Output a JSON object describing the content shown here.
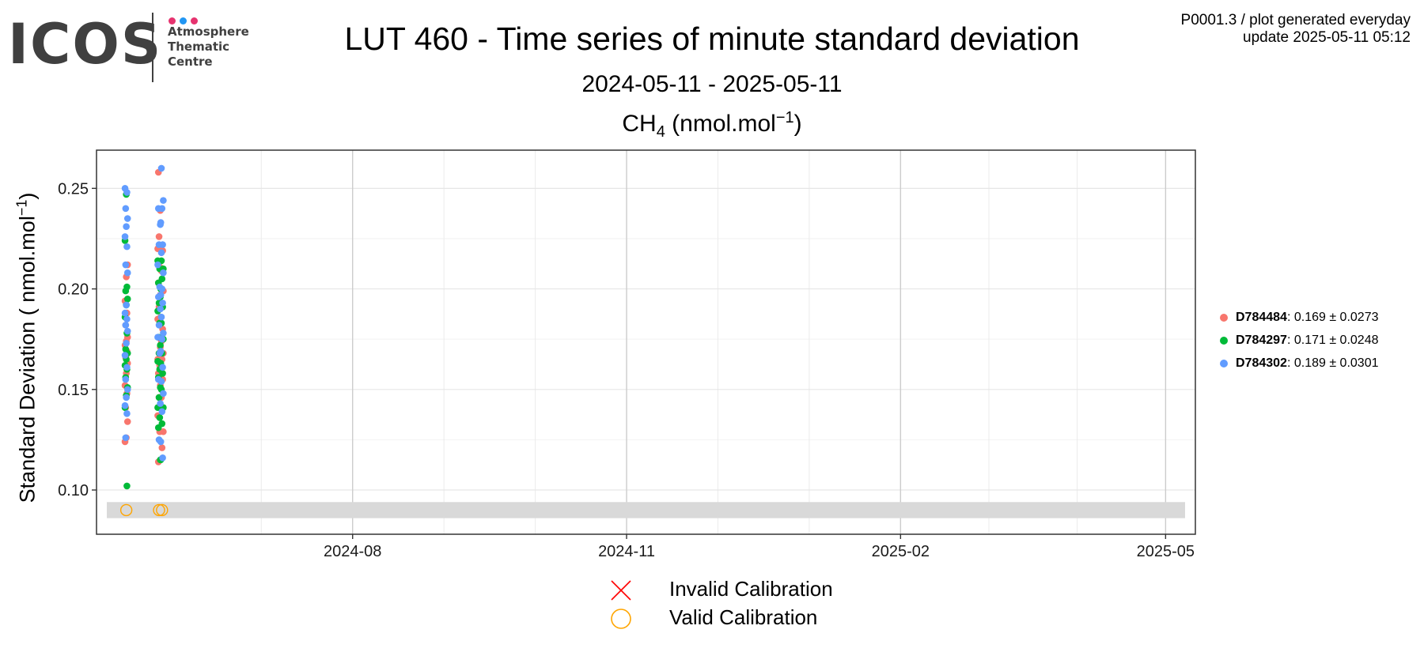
{
  "logo": {
    "text": "ICOS",
    "subtitle_lines": [
      "Atmosphere",
      "Thematic",
      "Centre"
    ],
    "dot_colors": [
      "#e6336f",
      "#2196f3",
      "#e6336f"
    ]
  },
  "header": {
    "title": "LUT 460 - Time series of minute standard deviation",
    "date_range": "2024-05-11 - 2025-05-11",
    "species_base": "CH",
    "species_sub": "4",
    "species_unit_pre": " (nmol.mol",
    "species_unit_sup": "−1",
    "species_unit_post": ")",
    "meta_line1": "P0001.3 / plot generated everyday",
    "meta_line2": "update  2025-05-11 05:12"
  },
  "axis": {
    "ylabel_pre": "Standard Deviation ( nmol.mol",
    "ylabel_sup": "−1",
    "ylabel_post": ")"
  },
  "legend": {
    "items": [
      {
        "id": "D784484",
        "text": ": 0.169 ± 0.0273",
        "color": "#f8766d"
      },
      {
        "id": "D784297",
        "text": ": 0.171 ± 0.0248",
        "color": "#00ba38"
      },
      {
        "id": "D784302",
        "text": ": 0.189 ± 0.0301",
        "color": "#619cff"
      }
    ]
  },
  "calibration_legend": {
    "invalid_label": "Invalid Calibration",
    "valid_label": "Valid Calibration",
    "invalid_color": "#ff0000",
    "valid_color": "#ffa500"
  },
  "chart_data": {
    "type": "scatter",
    "x_type": "date",
    "xlim": [
      "2024-05-07",
      "2025-05-11"
    ],
    "ylim": [
      0.078,
      0.269
    ],
    "x_ticks": [
      "2024-08-01",
      "2024-11-01",
      "2025-02-01",
      "2025-05-01"
    ],
    "x_tick_labels": [
      "2024-08",
      "2024-11",
      "2025-02",
      "2025-05"
    ],
    "y_ticks": [
      0.1,
      0.15,
      0.2,
      0.25
    ],
    "y_tick_labels": [
      "0.10",
      "0.15",
      "0.20",
      "0.25"
    ],
    "grid": true,
    "calibration_band": [
      0.086,
      0.094
    ],
    "calibration_points": [
      {
        "date": "2024-05-17",
        "value": 0.09,
        "status": "valid"
      },
      {
        "date": "2024-05-28",
        "value": 0.09,
        "status": "valid"
      },
      {
        "date": "2024-05-29",
        "value": 0.09,
        "status": "valid"
      }
    ],
    "series": [
      {
        "name": "D784484",
        "color": "#f8766d",
        "points": [
          {
            "date": "2024-05-17",
            "values": [
              0.124,
              0.126,
              0.134,
              0.141,
              0.148,
              0.152,
              0.158,
              0.163,
              0.166,
              0.169,
              0.172,
              0.174,
              0.176,
              0.182,
              0.188,
              0.194,
              0.206,
              0.212
            ]
          },
          {
            "date": "2024-05-28",
            "values": [
              0.114,
              0.129,
              0.137,
              0.146,
              0.152,
              0.158,
              0.162,
              0.165,
              0.168,
              0.171,
              0.176,
              0.182,
              0.185,
              0.191,
              0.197,
              0.203,
              0.211,
              0.22,
              0.226,
              0.239,
              0.258
            ]
          },
          {
            "date": "2024-05-29",
            "values": [
              0.121,
              0.129,
              0.146,
              0.155,
              0.161,
              0.165,
              0.168,
              0.174,
              0.18,
              0.186,
              0.192,
              0.199,
              0.209,
              0.219
            ]
          }
        ]
      },
      {
        "name": "D784297",
        "color": "#00ba38",
        "points": [
          {
            "date": "2024-05-17",
            "values": [
              0.102,
              0.141,
              0.147,
              0.151,
              0.156,
              0.16,
              0.162,
              0.165,
              0.168,
              0.17,
              0.178,
              0.186,
              0.192,
              0.195,
              0.199,
              0.201,
              0.224,
              0.247
            ]
          },
          {
            "date": "2024-05-28",
            "values": [
              0.115,
              0.131,
              0.136,
              0.141,
              0.146,
              0.151,
              0.156,
              0.16,
              0.164,
              0.168,
              0.172,
              0.176,
              0.183,
              0.189,
              0.193,
              0.196,
              0.203,
              0.21,
              0.214
            ]
          },
          {
            "date": "2024-05-29",
            "values": [
              0.115,
              0.133,
              0.141,
              0.15,
              0.158,
              0.163,
              0.168,
              0.175,
              0.183,
              0.191,
              0.2,
              0.205,
              0.21,
              0.214
            ]
          }
        ]
      },
      {
        "name": "D784302",
        "color": "#619cff",
        "points": [
          {
            "date": "2024-05-17",
            "values": [
              0.126,
              0.138,
              0.142,
              0.146,
              0.15,
              0.155,
              0.161,
              0.167,
              0.173,
              0.179,
              0.182,
              0.185,
              0.188,
              0.192,
              0.208,
              0.212,
              0.221,
              0.226,
              0.231,
              0.235,
              0.24,
              0.248,
              0.25
            ]
          },
          {
            "date": "2024-05-28",
            "values": [
              0.125,
              0.143,
              0.155,
              0.168,
              0.176,
              0.182,
              0.19,
              0.196,
              0.201,
              0.212,
              0.222,
              0.232,
              0.24
            ]
          },
          {
            "date": "2024-05-29",
            "values": [
              0.116,
              0.124,
              0.139,
              0.148,
              0.154,
              0.161,
              0.169,
              0.175,
              0.178,
              0.186,
              0.193,
              0.197,
              0.2,
              0.208,
              0.218,
              0.222,
              0.233,
              0.24,
              0.244,
              0.26
            ]
          }
        ]
      }
    ]
  }
}
